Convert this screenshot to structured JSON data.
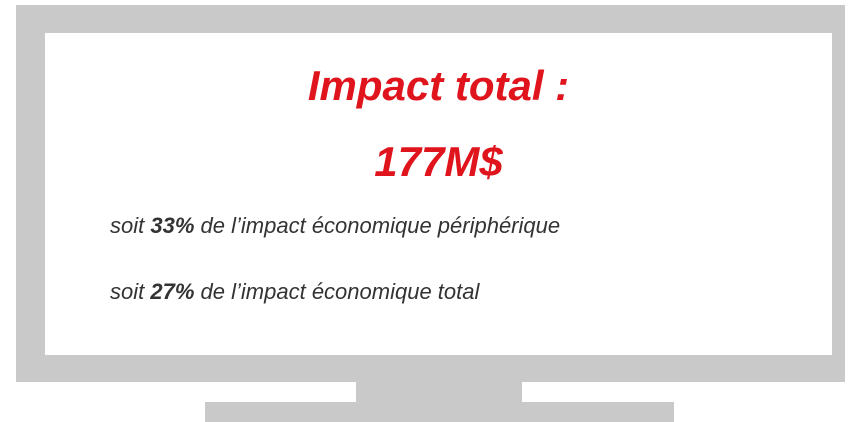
{
  "title": {
    "line1": "Impact total :",
    "line2": "177M$"
  },
  "lines": [
    {
      "prefix": "soit",
      "value": "33%",
      "text": "de l’impact économique périphérique"
    },
    {
      "prefix": "soit",
      "value": "27%",
      "text": "de l’impact économique total"
    }
  ]
}
